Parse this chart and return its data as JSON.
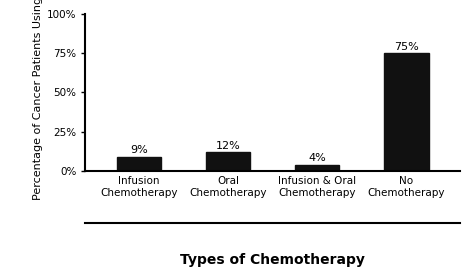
{
  "categories": [
    "Infusion\nChemotherapy",
    "Oral\nChemotherapy",
    "Infusion & Oral\nChemotherapy",
    "No\nChemotherapy"
  ],
  "values": [
    9,
    12,
    4,
    75
  ],
  "bar_color": "#111111",
  "bar_labels": [
    "9%",
    "12%",
    "4%",
    "75%"
  ],
  "xlabel": "Types of Chemotherapy",
  "ylabel": "Percentage of Cancer Patients Using It",
  "ylim": [
    0,
    100
  ],
  "yticks": [
    0,
    25,
    50,
    75,
    100
  ],
  "ytick_labels": [
    "0%",
    "25%",
    "50%",
    "75%",
    "100%"
  ],
  "xlabel_fontsize": 10,
  "ylabel_fontsize": 8,
  "tick_label_fontsize": 7.5,
  "bar_label_fontsize": 8,
  "xlabel_fontweight": "bold",
  "background_color": "#ffffff",
  "bar_width": 0.5
}
